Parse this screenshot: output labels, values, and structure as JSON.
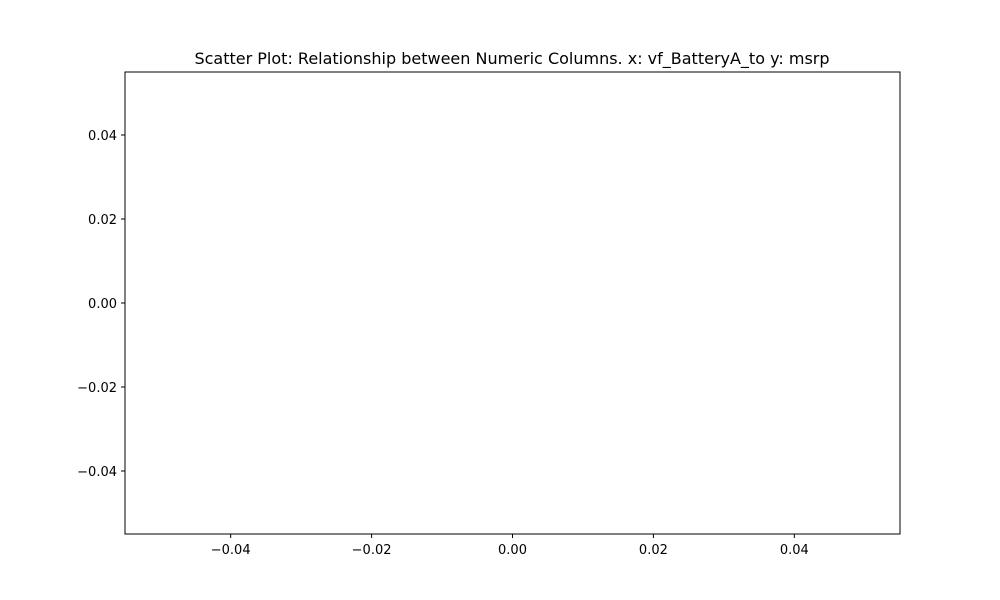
{
  "chart_data": {
    "type": "scatter",
    "title": "Scatter Plot: Relationship between Numeric Columns. x: vf_BatteryA_to y: msrp",
    "xlabel": "",
    "ylabel": "",
    "x": [],
    "y": [],
    "xlim": [
      -0.055,
      0.055
    ],
    "ylim": [
      -0.055,
      0.055
    ],
    "xticks": [
      -0.04,
      -0.02,
      0.0,
      0.02,
      0.04
    ],
    "xtick_labels": [
      "−0.04",
      "−0.02",
      "0.00",
      "0.02",
      "0.04"
    ],
    "yticks": [
      -0.04,
      -0.02,
      0.0,
      0.02,
      0.04
    ],
    "ytick_labels": [
      "−0.04",
      "−0.02",
      "0.00",
      "0.02",
      "0.04"
    ],
    "grid": false,
    "legend": "none"
  }
}
